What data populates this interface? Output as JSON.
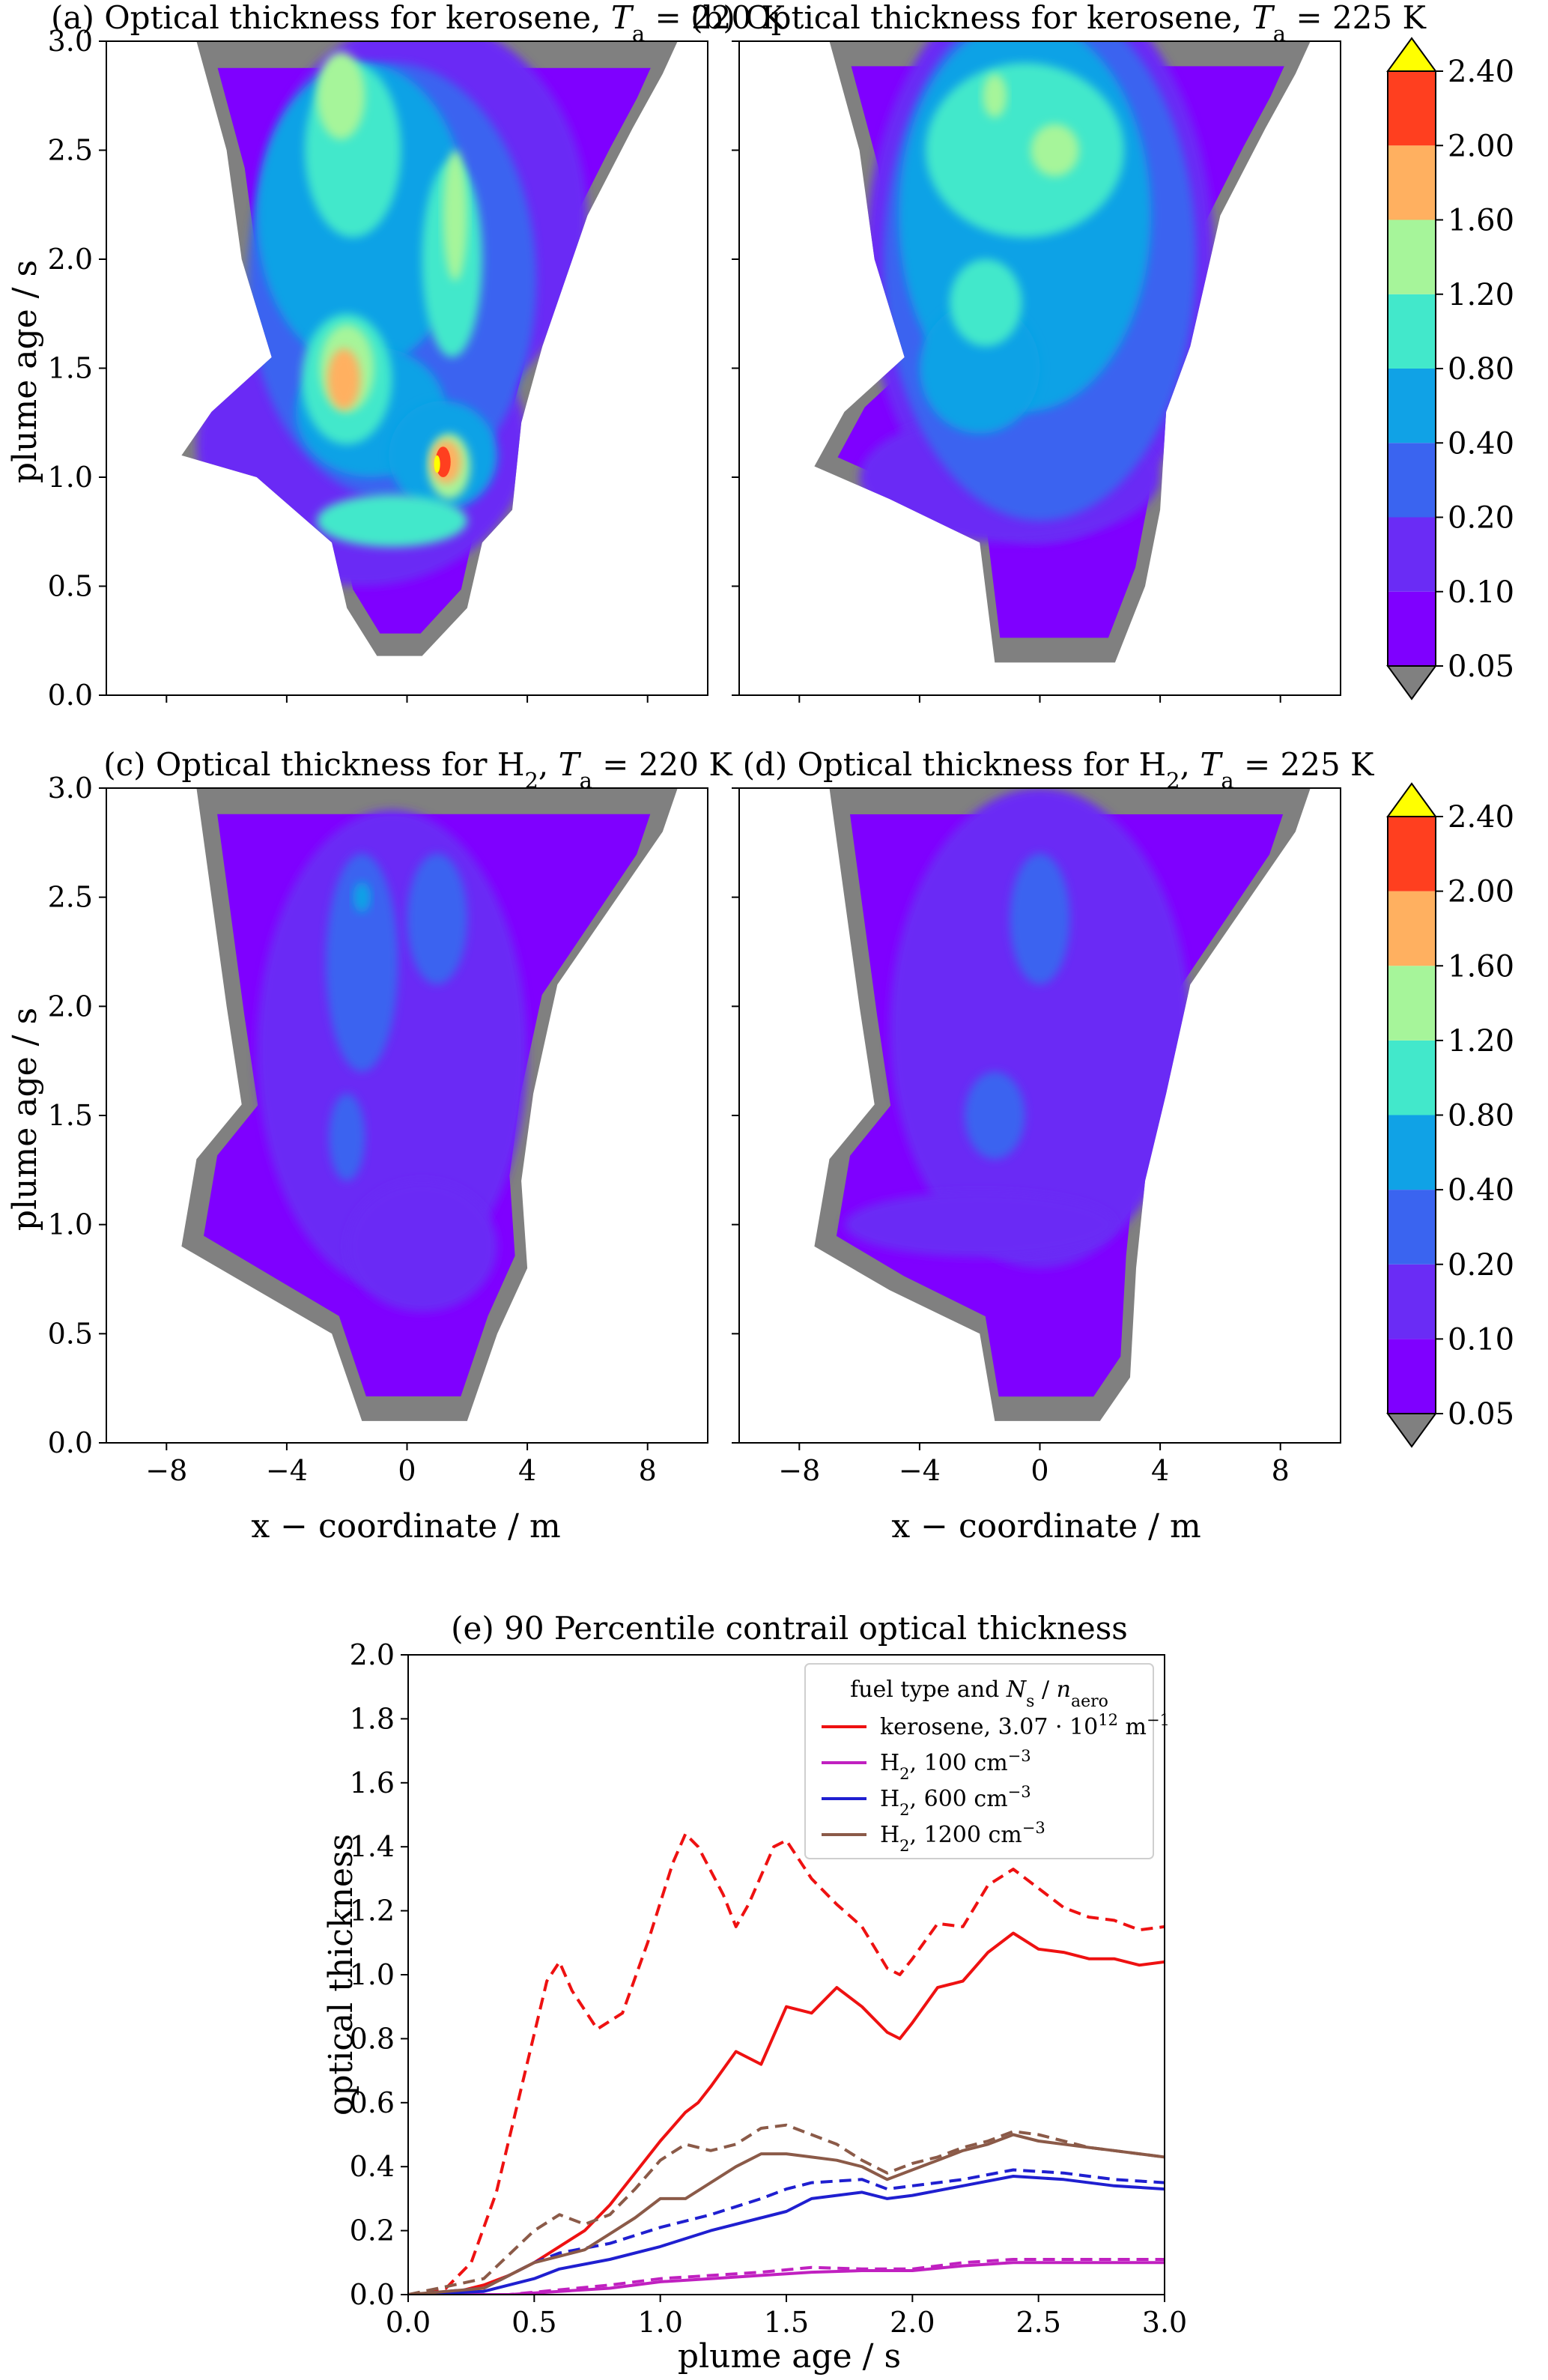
{
  "colors": {
    "levels": [
      "#808080",
      "#7f00ff",
      "#6a2cf5",
      "#3a64f0",
      "#10a2e6",
      "#42e8cb",
      "#a6f59a",
      "#ffb060",
      "#ff3f1f",
      "#ffff00"
    ],
    "kerosene": "#ee1111",
    "h2_100": "#c020c0",
    "h2_600": "#1f1fd0",
    "h2_1200": "#8b5a48"
  },
  "panels": [
    {
      "id": "a",
      "title": "(a) Optical thickness for kerosene, T_a = 220 K",
      "title_parts": [
        "(a) Optical thickness for kerosene, ",
        "T",
        "a",
        " = 220 K"
      ],
      "ylabel": "plume age / s",
      "xlabel": "",
      "xlim": [
        -10,
        10
      ],
      "ylim": [
        0,
        3
      ],
      "xticks": [
        -8,
        -4,
        0,
        4,
        8
      ],
      "yticks": [
        0.0,
        0.5,
        1.0,
        1.5,
        2.0,
        2.5,
        3.0
      ],
      "show_xticklabels": false,
      "show_yticklabels": true,
      "shape": [
        [
          -7,
          3
        ],
        [
          9,
          3
        ],
        [
          8.5,
          2.85
        ],
        [
          7.5,
          2.6
        ],
        [
          6,
          2.2
        ],
        [
          4.5,
          1.6
        ],
        [
          3.8,
          1.25
        ],
        [
          3.5,
          0.85
        ],
        [
          2.5,
          0.7
        ],
        [
          2,
          0.4
        ],
        [
          0.5,
          0.18
        ],
        [
          -1,
          0.18
        ],
        [
          -2,
          0.4
        ],
        [
          -2.5,
          0.7
        ],
        [
          -5,
          1.0
        ],
        [
          -7.5,
          1.1
        ],
        [
          -6.5,
          1.3
        ],
        [
          -4.5,
          1.55
        ],
        [
          -5.5,
          2.0
        ],
        [
          -6,
          2.5
        ]
      ],
      "blobs": [
        {
          "lev": 2,
          "cx": -1.5,
          "cy": 1.15,
          "rx": 5.5,
          "ry": 0.65
        },
        {
          "lev": 2,
          "cx": 0.5,
          "cy": 2.2,
          "rx": 5.5,
          "ry": 0.9
        },
        {
          "lev": 3,
          "cx": -0.5,
          "cy": 1.9,
          "rx": 4.8,
          "ry": 1.0
        },
        {
          "lev": 4,
          "cx": -1.5,
          "cy": 2.2,
          "rx": 3.5,
          "ry": 0.7
        },
        {
          "lev": 4,
          "cx": -1.2,
          "cy": 1.3,
          "rx": 2.5,
          "ry": 0.3
        },
        {
          "lev": 4,
          "cx": 1.2,
          "cy": 1.1,
          "rx": 1.8,
          "ry": 0.25
        },
        {
          "lev": 5,
          "cx": -1.8,
          "cy": 2.5,
          "rx": 1.6,
          "ry": 0.4
        },
        {
          "lev": 5,
          "cx": 1.5,
          "cy": 2.0,
          "rx": 1.0,
          "ry": 0.45
        },
        {
          "lev": 5,
          "cx": -2.0,
          "cy": 1.45,
          "rx": 1.5,
          "ry": 0.3
        },
        {
          "lev": 5,
          "cx": -0.5,
          "cy": 0.8,
          "rx": 2.5,
          "ry": 0.12
        },
        {
          "lev": 6,
          "cx": -2.2,
          "cy": 2.75,
          "rx": 0.8,
          "ry": 0.2
        },
        {
          "lev": 6,
          "cx": 1.6,
          "cy": 2.2,
          "rx": 0.4,
          "ry": 0.3
        },
        {
          "lev": 6,
          "cx": -2.0,
          "cy": 1.5,
          "rx": 0.9,
          "ry": 0.2
        },
        {
          "lev": 6,
          "cx": 1.4,
          "cy": 1.05,
          "rx": 0.7,
          "ry": 0.15
        },
        {
          "lev": 7,
          "cx": -2.1,
          "cy": 1.45,
          "rx": 0.55,
          "ry": 0.14
        },
        {
          "lev": 7,
          "cx": 1.3,
          "cy": 1.07,
          "rx": 0.5,
          "ry": 0.1
        },
        {
          "lev": 8,
          "cx": 1.2,
          "cy": 1.07,
          "rx": 0.25,
          "ry": 0.07
        },
        {
          "lev": 9,
          "cx": 1.0,
          "cy": 1.06,
          "rx": 0.1,
          "ry": 0.04
        }
      ]
    },
    {
      "id": "b",
      "title": "(b) Optical thickness for kerosene, T_a = 225 K",
      "title_parts": [
        "(b) Optical thickness for kerosene, ",
        "T",
        "a",
        " = 225 K"
      ],
      "ylabel": "",
      "xlabel": "",
      "xlim": [
        -10,
        10
      ],
      "ylim": [
        0,
        3
      ],
      "xticks": [
        -8,
        -4,
        0,
        4,
        8
      ],
      "yticks": [
        0.0,
        0.5,
        1.0,
        1.5,
        2.0,
        2.5,
        3.0
      ],
      "show_xticklabels": false,
      "show_yticklabels": false,
      "shape": [
        [
          -7,
          3
        ],
        [
          9,
          3
        ],
        [
          8.5,
          2.85
        ],
        [
          7.5,
          2.6
        ],
        [
          6,
          2.2
        ],
        [
          5,
          1.6
        ],
        [
          4.2,
          1.3
        ],
        [
          4,
          0.85
        ],
        [
          3.5,
          0.5
        ],
        [
          2.5,
          0.15
        ],
        [
          -1.5,
          0.15
        ],
        [
          -2,
          0.7
        ],
        [
          -5,
          0.9
        ],
        [
          -7.5,
          1.05
        ],
        [
          -6.5,
          1.3
        ],
        [
          -4.5,
          1.55
        ],
        [
          -5.5,
          2.0
        ],
        [
          -6,
          2.5
        ]
      ],
      "blobs": [
        {
          "lev": 2,
          "cx": 0,
          "cy": 2.0,
          "rx": 5.8,
          "ry": 1.3
        },
        {
          "lev": 2,
          "cx": -1,
          "cy": 1.0,
          "rx": 5.0,
          "ry": 0.3
        },
        {
          "lev": 3,
          "cx": 0,
          "cy": 2.0,
          "rx": 5.2,
          "ry": 1.2
        },
        {
          "lev": 4,
          "cx": -0.5,
          "cy": 2.2,
          "rx": 4.2,
          "ry": 0.9
        },
        {
          "lev": 4,
          "cx": -2,
          "cy": 1.5,
          "rx": 2.0,
          "ry": 0.3
        },
        {
          "lev": 5,
          "cx": -0.5,
          "cy": 2.5,
          "rx": 3.3,
          "ry": 0.4
        },
        {
          "lev": 5,
          "cx": -1.8,
          "cy": 1.8,
          "rx": 1.2,
          "ry": 0.2
        },
        {
          "lev": 6,
          "cx": -1.5,
          "cy": 2.75,
          "rx": 0.4,
          "ry": 0.1
        },
        {
          "lev": 6,
          "cx": 0.5,
          "cy": 2.5,
          "rx": 0.8,
          "ry": 0.12
        }
      ]
    },
    {
      "id": "c",
      "title": "(c) Optical thickness for H_2, T_a = 220 K",
      "title_parts": [
        "(c) Optical thickness for H",
        "2",
        ", ",
        "T",
        "a",
        " = 220 K"
      ],
      "ylabel": "plume age / s",
      "xlabel": "x − coordinate / m",
      "xlim": [
        -10,
        10
      ],
      "ylim": [
        0,
        3
      ],
      "xticks": [
        -8,
        -4,
        0,
        4,
        8
      ],
      "yticks": [
        0.0,
        0.5,
        1.0,
        1.5,
        2.0,
        2.5,
        3.0
      ],
      "show_xticklabels": true,
      "show_yticklabels": true,
      "shape": [
        [
          -7,
          3
        ],
        [
          9,
          3
        ],
        [
          8.5,
          2.8
        ],
        [
          7,
          2.5
        ],
        [
          5,
          2.1
        ],
        [
          4.2,
          1.6
        ],
        [
          3.8,
          1.2
        ],
        [
          4,
          0.8
        ],
        [
          3,
          0.5
        ],
        [
          2,
          0.1
        ],
        [
          -1.5,
          0.1
        ],
        [
          -2.5,
          0.5
        ],
        [
          -5,
          0.7
        ],
        [
          -7.5,
          0.9
        ],
        [
          -7,
          1.3
        ],
        [
          -5.5,
          1.55
        ],
        [
          -6,
          2.0
        ],
        [
          -6.5,
          2.5
        ]
      ],
      "blobs": [
        {
          "lev": 2,
          "cx": -0.5,
          "cy": 1.8,
          "rx": 4.5,
          "ry": 1.1
        },
        {
          "lev": 2,
          "cx": 0.5,
          "cy": 0.9,
          "rx": 2.5,
          "ry": 0.3
        },
        {
          "lev": 3,
          "cx": -1.5,
          "cy": 2.2,
          "rx": 1.2,
          "ry": 0.5
        },
        {
          "lev": 3,
          "cx": 1.0,
          "cy": 2.4,
          "rx": 1.0,
          "ry": 0.3
        },
        {
          "lev": 3,
          "cx": -2.0,
          "cy": 1.4,
          "rx": 0.6,
          "ry": 0.2
        },
        {
          "lev": 4,
          "cx": -1.5,
          "cy": 2.5,
          "rx": 0.3,
          "ry": 0.07
        }
      ]
    },
    {
      "id": "d",
      "title": "(d) Optical thickness for H_2, T_a = 225 K",
      "title_parts": [
        "(d) Optical thickness for H",
        "2",
        ", ",
        "T",
        "a",
        " = 225 K"
      ],
      "ylabel": "",
      "xlabel": "x − coordinate / m",
      "xlim": [
        -10,
        10
      ],
      "ylim": [
        0,
        3
      ],
      "xticks": [
        -8,
        -4,
        0,
        4,
        8
      ],
      "yticks": [
        0.0,
        0.5,
        1.0,
        1.5,
        2.0,
        2.5,
        3.0
      ],
      "show_xticklabels": true,
      "show_yticklabels": false,
      "shape": [
        [
          -7,
          3
        ],
        [
          9,
          3
        ],
        [
          8.5,
          2.8
        ],
        [
          7,
          2.5
        ],
        [
          5,
          2.1
        ],
        [
          4.2,
          1.6
        ],
        [
          3.5,
          1.2
        ],
        [
          3.2,
          0.8
        ],
        [
          3,
          0.3
        ],
        [
          2,
          0.1
        ],
        [
          -1.5,
          0.1
        ],
        [
          -2,
          0.5
        ],
        [
          -5,
          0.7
        ],
        [
          -7.5,
          0.9
        ],
        [
          -7,
          1.3
        ],
        [
          -5.5,
          1.55
        ],
        [
          -6,
          2.0
        ],
        [
          -6.5,
          2.5
        ]
      ],
      "blobs": [
        {
          "lev": 2,
          "cx": 0,
          "cy": 1.9,
          "rx": 5.0,
          "ry": 1.1
        },
        {
          "lev": 2,
          "cx": -2,
          "cy": 1.0,
          "rx": 4.5,
          "ry": 0.15
        },
        {
          "lev": 3,
          "cx": 0,
          "cy": 2.4,
          "rx": 1.0,
          "ry": 0.3
        },
        {
          "lev": 3,
          "cx": -1.5,
          "cy": 1.5,
          "rx": 1.0,
          "ry": 0.2
        }
      ]
    }
  ],
  "colorbar": {
    "labels": [
      "2.40",
      "2.00",
      "1.60",
      "1.20",
      "0.80",
      "0.40",
      "0.20",
      "0.10",
      "0.05"
    ]
  },
  "chart_data": {
    "type": "line",
    "title": "(e) 90 Percentile contrail optical thickness",
    "xlabel": "plume age / s",
    "ylabel": "optical thickness",
    "xlim": [
      0.0,
      3.0
    ],
    "ylim": [
      0.0,
      2.0
    ],
    "xticks": [
      "0.0",
      "0.5",
      "1.0",
      "1.5",
      "2.0",
      "2.5",
      "3.0"
    ],
    "yticks": [
      "0.0",
      "0.2",
      "0.4",
      "0.6",
      "0.8",
      "1.0",
      "1.2",
      "1.4",
      "1.6",
      "1.8",
      "2.0"
    ],
    "grid": false,
    "legend": {
      "position": "top-right",
      "title": "fuel type and N_s / n_aero",
      "entries": [
        "kerosene, 3.07 · 10^12 m^-1",
        "H_2, 100 cm^-3",
        "H_2, 600 cm^-3",
        "H_2, 1200 cm^-3"
      ]
    },
    "series": [
      {
        "name": "kerosene, 3.07 · 10^12 m^-1",
        "style": "solid",
        "color": "kerosene",
        "x": [
          0.0,
          0.2,
          0.3,
          0.4,
          0.5,
          0.6,
          0.7,
          0.8,
          0.9,
          1.0,
          1.1,
          1.15,
          1.2,
          1.3,
          1.4,
          1.5,
          1.6,
          1.7,
          1.8,
          1.9,
          1.95,
          2.0,
          2.1,
          2.2,
          2.3,
          2.4,
          2.5,
          2.6,
          2.7,
          2.8,
          2.9,
          3.0
        ],
        "y": [
          0.0,
          0.01,
          0.03,
          0.06,
          0.1,
          0.15,
          0.2,
          0.28,
          0.38,
          0.48,
          0.57,
          0.6,
          0.65,
          0.76,
          0.72,
          0.9,
          0.88,
          0.96,
          0.9,
          0.82,
          0.8,
          0.85,
          0.96,
          0.98,
          1.07,
          1.13,
          1.08,
          1.07,
          1.05,
          1.05,
          1.03,
          1.04
        ]
      },
      {
        "name": "",
        "style": "dashed",
        "color": "kerosene",
        "x": [
          0.0,
          0.15,
          0.25,
          0.35,
          0.45,
          0.55,
          0.6,
          0.65,
          0.75,
          0.85,
          0.95,
          1.05,
          1.1,
          1.15,
          1.25,
          1.3,
          1.35,
          1.45,
          1.5,
          1.6,
          1.7,
          1.8,
          1.9,
          1.95,
          2.0,
          2.1,
          2.2,
          2.3,
          2.4,
          2.5,
          2.6,
          2.7,
          2.8,
          2.9,
          3.0
        ],
        "y": [
          0.0,
          0.02,
          0.1,
          0.32,
          0.65,
          0.98,
          1.04,
          0.95,
          0.83,
          0.88,
          1.1,
          1.35,
          1.44,
          1.4,
          1.25,
          1.15,
          1.22,
          1.4,
          1.42,
          1.3,
          1.22,
          1.15,
          1.02,
          1.0,
          1.05,
          1.16,
          1.15,
          1.28,
          1.33,
          1.27,
          1.21,
          1.18,
          1.17,
          1.14,
          1.15
        ]
      },
      {
        "name": "H_2, 100 cm^-3",
        "style": "solid",
        "color": "h2_100",
        "x": [
          0.0,
          0.4,
          0.6,
          0.8,
          1.0,
          1.2,
          1.4,
          1.6,
          1.8,
          2.0,
          2.2,
          2.4,
          2.6,
          2.8,
          3.0
        ],
        "y": [
          0.0,
          0.0,
          0.01,
          0.02,
          0.04,
          0.05,
          0.06,
          0.07,
          0.075,
          0.075,
          0.09,
          0.1,
          0.1,
          0.1,
          0.1
        ]
      },
      {
        "name": "",
        "style": "dashed",
        "color": "h2_100",
        "x": [
          0.0,
          0.4,
          0.6,
          0.8,
          1.0,
          1.2,
          1.4,
          1.6,
          1.8,
          2.0,
          2.2,
          2.4,
          2.6,
          2.8,
          3.0
        ],
        "y": [
          0.0,
          0.0,
          0.015,
          0.03,
          0.05,
          0.06,
          0.07,
          0.085,
          0.08,
          0.08,
          0.1,
          0.11,
          0.11,
          0.11,
          0.11
        ]
      },
      {
        "name": "H_2, 600 cm^-3",
        "style": "solid",
        "color": "h2_600",
        "x": [
          0.0,
          0.3,
          0.5,
          0.6,
          0.8,
          1.0,
          1.2,
          1.4,
          1.5,
          1.6,
          1.8,
          1.9,
          2.0,
          2.2,
          2.4,
          2.6,
          2.8,
          3.0
        ],
        "y": [
          0.0,
          0.01,
          0.05,
          0.08,
          0.11,
          0.15,
          0.2,
          0.24,
          0.26,
          0.3,
          0.32,
          0.3,
          0.31,
          0.34,
          0.37,
          0.36,
          0.34,
          0.33
        ]
      },
      {
        "name": "",
        "style": "dashed",
        "color": "h2_600",
        "x": [
          0.0,
          0.3,
          0.5,
          0.6,
          0.8,
          1.0,
          1.2,
          1.4,
          1.5,
          1.6,
          1.8,
          1.9,
          2.0,
          2.2,
          2.4,
          2.6,
          2.8,
          3.0
        ],
        "y": [
          0.0,
          0.02,
          0.1,
          0.13,
          0.16,
          0.21,
          0.25,
          0.3,
          0.33,
          0.35,
          0.36,
          0.33,
          0.34,
          0.36,
          0.39,
          0.38,
          0.36,
          0.35
        ]
      },
      {
        "name": "H_2, 1200 cm^-3",
        "style": "solid",
        "color": "h2_1200",
        "x": [
          0.0,
          0.3,
          0.5,
          0.6,
          0.7,
          0.8,
          0.9,
          1.0,
          1.1,
          1.2,
          1.3,
          1.4,
          1.5,
          1.6,
          1.7,
          1.8,
          1.9,
          2.0,
          2.1,
          2.2,
          2.3,
          2.4,
          2.5,
          2.6,
          2.7,
          2.8,
          2.9,
          3.0
        ],
        "y": [
          0.0,
          0.02,
          0.1,
          0.12,
          0.14,
          0.19,
          0.24,
          0.3,
          0.3,
          0.35,
          0.4,
          0.44,
          0.44,
          0.43,
          0.42,
          0.4,
          0.36,
          0.39,
          0.42,
          0.45,
          0.47,
          0.5,
          0.48,
          0.47,
          0.46,
          0.45,
          0.44,
          0.43
        ]
      },
      {
        "name": "",
        "style": "dashed",
        "color": "h2_1200",
        "x": [
          0.0,
          0.3,
          0.5,
          0.6,
          0.7,
          0.8,
          0.9,
          1.0,
          1.1,
          1.2,
          1.3,
          1.4,
          1.5,
          1.6,
          1.7,
          1.8,
          1.9,
          2.0,
          2.1,
          2.2,
          2.3,
          2.4,
          2.5,
          2.6,
          2.7,
          2.8,
          2.9,
          3.0
        ],
        "y": [
          0.0,
          0.05,
          0.2,
          0.25,
          0.22,
          0.25,
          0.33,
          0.42,
          0.47,
          0.45,
          0.47,
          0.52,
          0.53,
          0.5,
          0.47,
          0.42,
          0.38,
          0.41,
          0.43,
          0.46,
          0.48,
          0.51,
          0.5,
          0.48,
          0.46,
          0.45,
          0.44,
          0.43
        ]
      }
    ]
  }
}
